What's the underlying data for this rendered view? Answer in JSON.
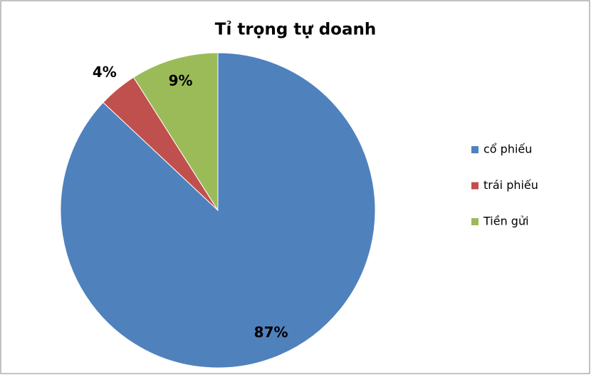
{
  "chart_data": {
    "type": "pie",
    "title": "Tỉ trọng tự doanh",
    "categories": [
      "cổ phiếu",
      "trái phiếu",
      "Tiền gửi"
    ],
    "values": [
      87,
      4,
      9
    ],
    "value_labels": [
      "87%",
      "4%",
      "9%"
    ],
    "colors": [
      "#4f81bd",
      "#c0504d",
      "#9bbb59"
    ],
    "legend": "right"
  }
}
